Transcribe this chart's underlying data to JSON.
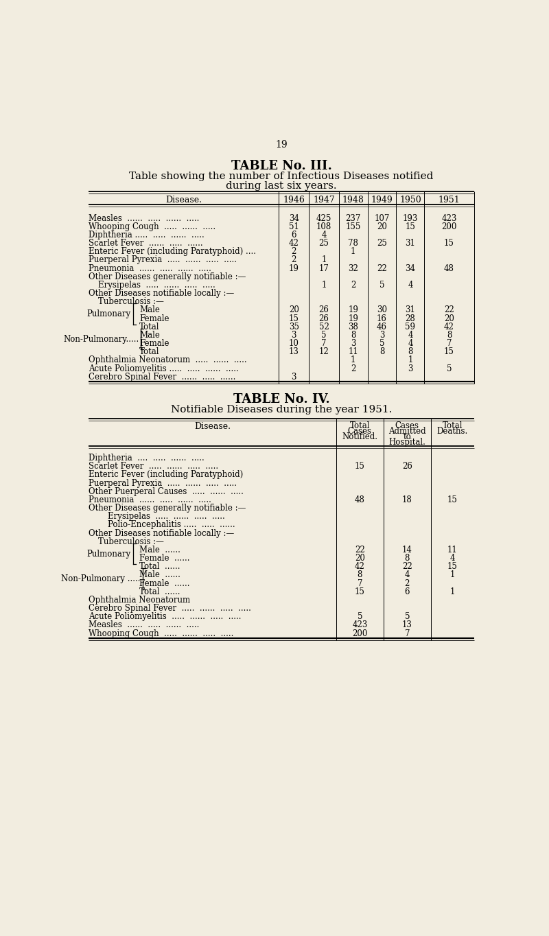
{
  "bg_color": "#f2ede0",
  "page_number": "19",
  "table3": {
    "title1": "TABLE No. III.",
    "title2": "Table showing the number of Infectious Diseases notified",
    "title3": "during last six years.",
    "col_headers": [
      "Disease.",
      "1946",
      "1947",
      "1948",
      "1949",
      "1950",
      "1951"
    ],
    "rows": [
      {
        "label": "Measles",
        "trail": "  ......  .....  ......  .....",
        "indent": 0,
        "values": [
          "34",
          "425",
          "237",
          "107",
          "193",
          "423"
        ]
      },
      {
        "label": "Whooping Cough",
        "trail": "  .....  ......  .....",
        "indent": 0,
        "values": [
          "51",
          "108",
          "155",
          "20",
          "15",
          "200"
        ]
      },
      {
        "label": "Diphtheria .....",
        "trail": "  .....  ......  .....",
        "indent": 0,
        "values": [
          "6",
          "4",
          "",
          "",
          "",
          ""
        ]
      },
      {
        "label": "Scarlet Fever",
        "trail": "  ......  .....  ......",
        "indent": 0,
        "values": [
          "42",
          "25",
          "78",
          "25",
          "31",
          "15"
        ]
      },
      {
        "label": "Enteric Fever (including Paratyphoid) ....",
        "trail": "",
        "indent": 0,
        "values": [
          "2",
          "",
          "1",
          "",
          "",
          ""
        ]
      },
      {
        "label": "Puerperal Pyrexia",
        "trail": "  .....  ......  .....  .....",
        "indent": 0,
        "values": [
          "2",
          "1",
          "",
          "",
          "",
          ""
        ]
      },
      {
        "label": "Pneumonia",
        "trail": "  ......  .....  ......  .....",
        "indent": 0,
        "values": [
          "19",
          "17",
          "32",
          "22",
          "34",
          "48"
        ]
      },
      {
        "label": "Other Diseases generally notifiable :—",
        "trail": "",
        "indent": 0,
        "values": [
          "",
          "",
          "",
          "",
          "",
          ""
        ]
      },
      {
        "label": "Erysipelas",
        "trail": "  .....  ......  .....  .....",
        "indent": 1,
        "values": [
          "",
          "1",
          "2",
          "5",
          "4",
          ""
        ]
      },
      {
        "label": "Other Diseases notifiable locally :—",
        "trail": "",
        "indent": 0,
        "values": [
          "",
          "",
          "",
          "",
          "",
          ""
        ]
      },
      {
        "label": "Tuberculosis :—",
        "trail": "",
        "indent": 1,
        "values": [
          "",
          "",
          "",
          "",
          "",
          ""
        ]
      },
      {
        "label": "Male",
        "trail": "",
        "indent": 3,
        "brace": "Pulmonary",
        "values": [
          "20",
          "26",
          "19",
          "30",
          "31",
          "22"
        ]
      },
      {
        "label": "Female",
        "trail": "",
        "indent": 3,
        "brace": "Pulmonary",
        "values": [
          "15",
          "26",
          "19",
          "16",
          "28",
          "20"
        ]
      },
      {
        "label": "Total",
        "trail": "",
        "indent": 3,
        "brace": "Pulmonary",
        "values": [
          "35",
          "52",
          "38",
          "46",
          "59",
          "42"
        ]
      },
      {
        "label": "Male",
        "trail": "",
        "indent": 3,
        "brace": "Non-Pulmonary",
        "values": [
          "3",
          "5",
          "8",
          "3",
          "4",
          "8"
        ]
      },
      {
        "label": "Female",
        "trail": "",
        "indent": 3,
        "brace": "Non-Pulmonary",
        "values": [
          "10",
          "7",
          "3",
          "5",
          "4",
          "7"
        ]
      },
      {
        "label": "Total",
        "trail": "",
        "indent": 3,
        "brace": "Non-Pulmonary",
        "values": [
          "13",
          "12",
          "11",
          "8",
          "8",
          "15"
        ]
      },
      {
        "label": "Ophthalmia Neonatorum",
        "trail": "  .....  ......  .....",
        "indent": 0,
        "values": [
          "",
          "",
          "1",
          "",
          "1",
          ""
        ]
      },
      {
        "label": "Acute Poliomyelitis .....",
        "trail": "  .....  ......  .....",
        "indent": 0,
        "values": [
          "",
          "",
          "2",
          "",
          "3",
          "5"
        ]
      },
      {
        "label": "Cerebro Spinal Fever",
        "trail": "  ......  .....  ......",
        "indent": 0,
        "values": [
          "3",
          "",
          "",
          "",
          "",
          ""
        ]
      }
    ]
  },
  "table4": {
    "title1": "TABLE No. IV.",
    "title2": "Notifiable Diseases during the year 1951.",
    "rows": [
      {
        "label": "Diphtheria",
        "trail": "  ....  .....  ......  .....",
        "indent": 0,
        "values": [
          "",
          "",
          ""
        ]
      },
      {
        "label": "Scarlet Fever",
        "trail": "  .....  ......  .....  .....",
        "indent": 0,
        "values": [
          "15",
          "26",
          ""
        ]
      },
      {
        "label": "Enteric Fever (including Paratyphoid)",
        "trail": "",
        "indent": 0,
        "values": [
          "",
          "",
          ""
        ]
      },
      {
        "label": "Puerperal Pyrexia",
        "trail": "  .....  ......  .....  .....",
        "indent": 0,
        "values": [
          "",
          "",
          ""
        ]
      },
      {
        "label": "Other Puerperal Causes",
        "trail": "  .....  ......  .....",
        "indent": 0,
        "values": [
          "",
          "",
          ""
        ]
      },
      {
        "label": "Pneumonia",
        "trail": "  ......  .....  ......  .....",
        "indent": 0,
        "values": [
          "48",
          "18",
          "15"
        ]
      },
      {
        "label": "Other Diseases generally notifiable :—",
        "trail": "",
        "indent": 0,
        "values": [
          "",
          "",
          ""
        ]
      },
      {
        "label": "Erysipelas",
        "trail": "  .....  ......  .....  .....",
        "indent": 2,
        "values": [
          "",
          "",
          ""
        ]
      },
      {
        "label": "Polio-Encephalitis .....",
        "trail": "  .....  ......",
        "indent": 2,
        "values": [
          "",
          "",
          ""
        ]
      },
      {
        "label": "Other Diseases notifiable locally :—",
        "trail": "",
        "indent": 0,
        "values": [
          "",
          "",
          ""
        ]
      },
      {
        "label": "Tuberculosis :—",
        "trail": "",
        "indent": 1,
        "values": [
          "",
          "",
          ""
        ]
      },
      {
        "label": "Male",
        "trail": "  ......",
        "indent": 3,
        "brace": "Pulmonary",
        "values": [
          "22",
          "14",
          "11"
        ]
      },
      {
        "label": "Female",
        "trail": "  ......",
        "indent": 3,
        "brace": "Pulmonary",
        "values": [
          "20",
          "8",
          "4"
        ]
      },
      {
        "label": "Total",
        "trail": "  ......",
        "indent": 3,
        "brace": "Pulmonary",
        "values": [
          "42",
          "22",
          "15"
        ]
      },
      {
        "label": "Male",
        "trail": "  ......",
        "indent": 3,
        "brace": "Non-Pulmonary",
        "values": [
          "8",
          "4",
          "1"
        ]
      },
      {
        "label": "Female",
        "trail": "  ......",
        "indent": 3,
        "brace": "Non-Pulmonary",
        "values": [
          "7",
          "2",
          ""
        ]
      },
      {
        "label": "Total",
        "trail": "  ......",
        "indent": 3,
        "brace": "Non-Pulmonary",
        "values": [
          "15",
          "6",
          "1"
        ]
      },
      {
        "label": "Ophthalmia Neonatorum",
        "trail": "",
        "indent": 0,
        "values": [
          "",
          "",
          ""
        ]
      },
      {
        "label": "Cerebro Spinal Fever",
        "trail": "  .....  ......  .....  .....",
        "indent": 0,
        "values": [
          "",
          "",
          ""
        ]
      },
      {
        "label": "Acute Poliomyelitis",
        "trail": "  .....  ......  .....  .....",
        "indent": 0,
        "values": [
          "5",
          "5",
          ""
        ]
      },
      {
        "label": "Measles",
        "trail": "  ......  .....  ......  .....",
        "indent": 0,
        "values": [
          "423",
          "13",
          ""
        ]
      },
      {
        "label": "Whooping Cough",
        "trail": "  .....  ......  .....  .....",
        "indent": 0,
        "values": [
          "200",
          "7",
          ""
        ]
      }
    ]
  }
}
